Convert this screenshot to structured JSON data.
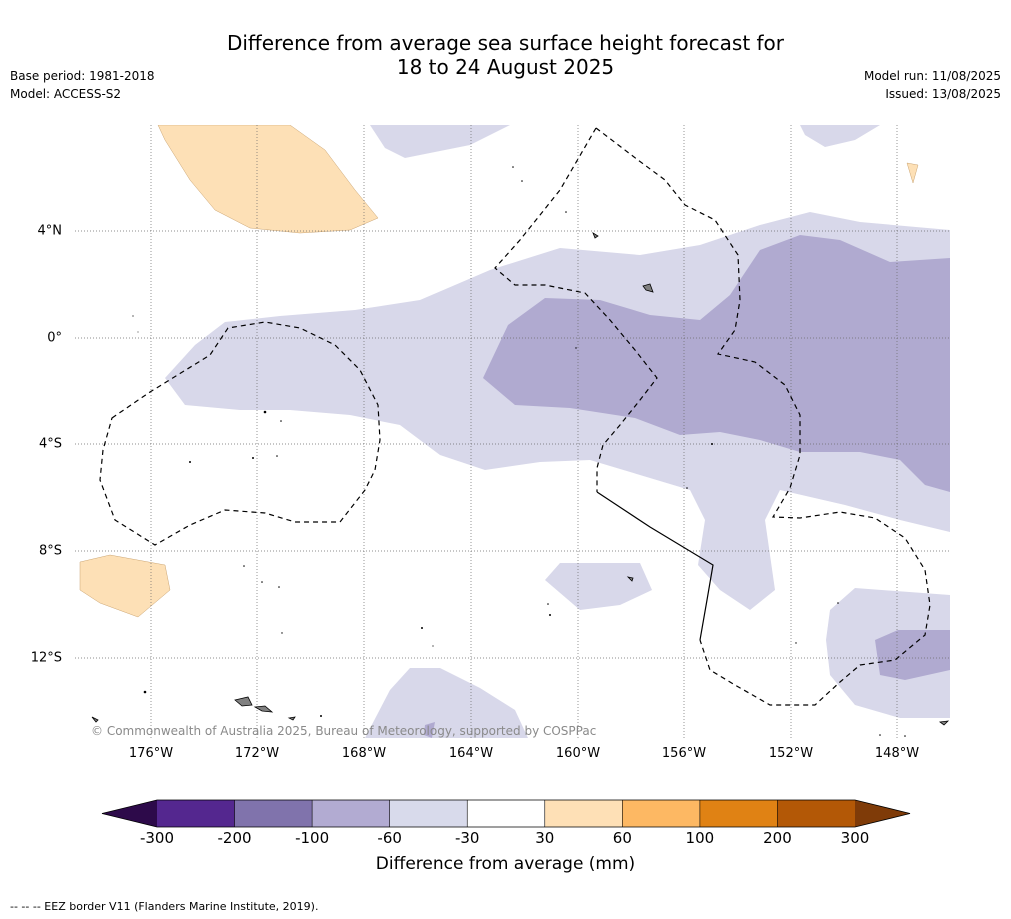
{
  "title_line1": "Difference from average sea surface height forecast for",
  "title_line2": "18 to 24 August 2025",
  "base_period": "Base period: 1981-2018",
  "model": "Model: ACCESS-S2",
  "model_run": "Model run: 11/08/2025",
  "issued": "Issued: 13/08/2025",
  "credit": "© Commonwealth of Australia 2025, Bureau of Meteorology, supported by COSPPac",
  "lon_labels": [
    "176°W",
    "172°W",
    "168°W",
    "164°W",
    "160°W",
    "156°W",
    "152°W",
    "148°W"
  ],
  "lat_labels": [
    "4°N",
    "0°",
    "4°S",
    "8°S",
    "12°S"
  ],
  "colorbar": {
    "title": "Difference from average (mm)",
    "ticks": [
      "-300",
      "-200",
      "-100",
      "-60",
      "-30",
      "30",
      "60",
      "100",
      "200",
      "300"
    ],
    "colors": [
      "#2d0a4a",
      "#54278f",
      "#8073ac",
      "#b2abd2",
      "#d8daeb",
      "#ffffff",
      "#fee0b6",
      "#fdb863",
      "#e08214",
      "#b35806",
      "#7f3b08"
    ]
  },
  "footnote": "--  --  -- EEZ border V11 (Flanders Marine Institute, 2019)."
}
